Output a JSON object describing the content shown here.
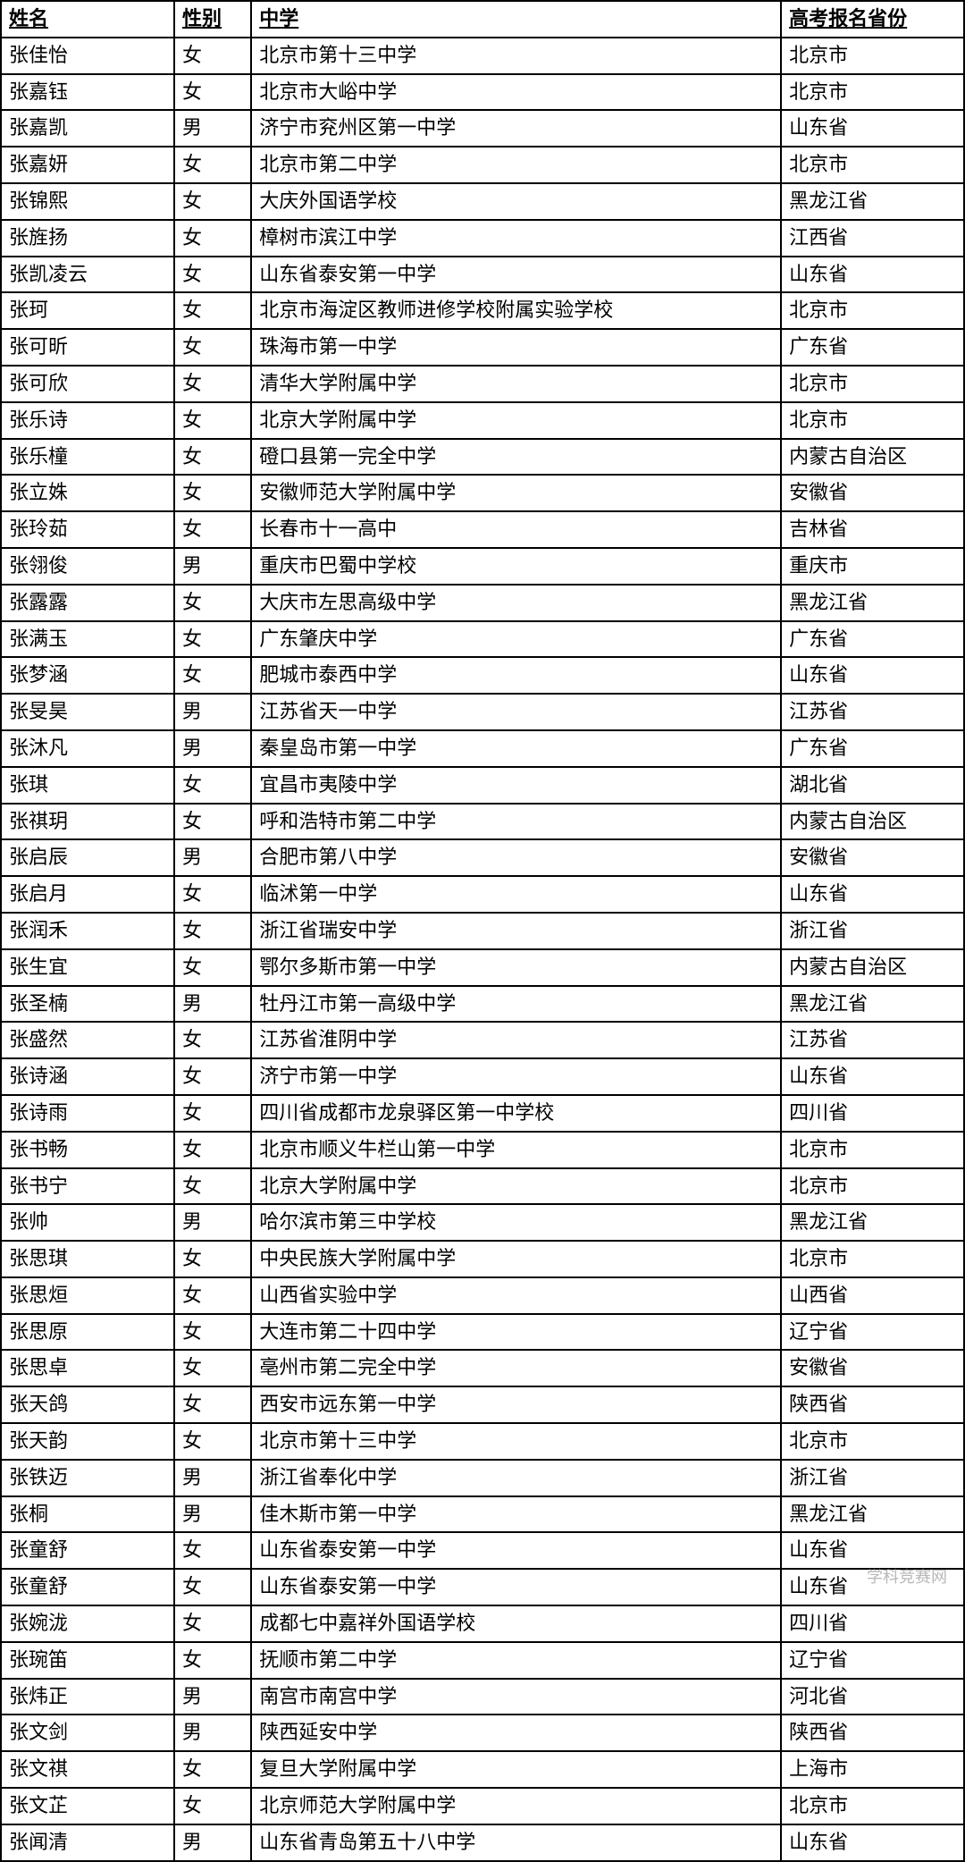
{
  "table": {
    "columns": [
      "姓名",
      "性别",
      "中学",
      "高考报名省份"
    ],
    "column_widths": [
      "18%",
      "8%",
      "55%",
      "19%"
    ],
    "header_fontsize": 22,
    "cell_fontsize": 22,
    "border_color": "#000000",
    "background_color": "#ffffff",
    "rows": [
      [
        "张佳怡",
        "女",
        "北京市第十三中学",
        "北京市"
      ],
      [
        "张嘉钰",
        "女",
        "北京市大峪中学",
        "北京市"
      ],
      [
        "张嘉凯",
        "男",
        "济宁市兖州区第一中学",
        "山东省"
      ],
      [
        "张嘉妍",
        "女",
        "北京市第二中学",
        "北京市"
      ],
      [
        "张锦熙",
        "女",
        "大庆外国语学校",
        "黑龙江省"
      ],
      [
        "张旌扬",
        "女",
        "樟树市滨江中学",
        "江西省"
      ],
      [
        "张凯凌云",
        "女",
        "山东省泰安第一中学",
        "山东省"
      ],
      [
        "张珂",
        "女",
        "北京市海淀区教师进修学校附属实验学校",
        "北京市"
      ],
      [
        "张可昕",
        "女",
        "珠海市第一中学",
        "广东省"
      ],
      [
        "张可欣",
        "女",
        "清华大学附属中学",
        "北京市"
      ],
      [
        "张乐诗",
        "女",
        "北京大学附属中学",
        "北京市"
      ],
      [
        "张乐橦",
        "女",
        "磴口县第一完全中学",
        "内蒙古自治区"
      ],
      [
        "张立姝",
        "女",
        "安徽师范大学附属中学",
        "安徽省"
      ],
      [
        "张玲茹",
        "女",
        "长春市十一高中",
        "吉林省"
      ],
      [
        "张翎俊",
        "男",
        "重庆市巴蜀中学校",
        "重庆市"
      ],
      [
        "张露露",
        "女",
        "大庆市左思高级中学",
        "黑龙江省"
      ],
      [
        "张满玉",
        "女",
        "广东肇庆中学",
        "广东省"
      ],
      [
        "张梦涵",
        "女",
        "肥城市泰西中学",
        "山东省"
      ],
      [
        "张旻昊",
        "男",
        "江苏省天一中学",
        "江苏省"
      ],
      [
        "张沐凡",
        "男",
        "秦皇岛市第一中学",
        "广东省"
      ],
      [
        "张琪",
        "女",
        "宜昌市夷陵中学",
        "湖北省"
      ],
      [
        "张祺玥",
        "女",
        "呼和浩特市第二中学",
        "内蒙古自治区"
      ],
      [
        "张启辰",
        "男",
        "合肥市第八中学",
        "安徽省"
      ],
      [
        "张启月",
        "女",
        "临沭第一中学",
        "山东省"
      ],
      [
        "张润禾",
        "女",
        "浙江省瑞安中学",
        "浙江省"
      ],
      [
        "张生宜",
        "女",
        "鄂尔多斯市第一中学",
        "内蒙古自治区"
      ],
      [
        "张圣楠",
        "男",
        "牡丹江市第一高级中学",
        "黑龙江省"
      ],
      [
        "张盛然",
        "女",
        "江苏省淮阴中学",
        "江苏省"
      ],
      [
        "张诗涵",
        "女",
        "济宁市第一中学",
        "山东省"
      ],
      [
        "张诗雨",
        "女",
        "四川省成都市龙泉驿区第一中学校",
        "四川省"
      ],
      [
        "张书畅",
        "女",
        "北京市顺义牛栏山第一中学",
        "北京市"
      ],
      [
        "张书宁",
        "女",
        "北京大学附属中学",
        "北京市"
      ],
      [
        "张帅",
        "男",
        "哈尔滨市第三中学校",
        "黑龙江省"
      ],
      [
        "张思琪",
        "女",
        "中央民族大学附属中学",
        "北京市"
      ],
      [
        "张思烜",
        "女",
        "山西省实验中学",
        "山西省"
      ],
      [
        "张思原",
        "女",
        "大连市第二十四中学",
        "辽宁省"
      ],
      [
        "张思卓",
        "女",
        "亳州市第二完全中学",
        "安徽省"
      ],
      [
        "张天鸽",
        "女",
        "西安市远东第一中学",
        "陕西省"
      ],
      [
        "张天韵",
        "女",
        "北京市第十三中学",
        "北京市"
      ],
      [
        "张铁迈",
        "男",
        "浙江省奉化中学",
        "浙江省"
      ],
      [
        "张桐",
        "男",
        "佳木斯市第一中学",
        "黑龙江省"
      ],
      [
        "张童舒",
        "女",
        "山东省泰安第一中学",
        "山东省"
      ],
      [
        "张童舒",
        "女",
        "山东省泰安第一中学",
        "山东省"
      ],
      [
        "张婉泷",
        "女",
        "成都七中嘉祥外国语学校",
        "四川省"
      ],
      [
        "张琬笛",
        "女",
        "抚顺市第二中学",
        "辽宁省"
      ],
      [
        "张炜正",
        "男",
        "南宫市南宫中学",
        "河北省"
      ],
      [
        "张文剑",
        "男",
        "陕西延安中学",
        "陕西省"
      ],
      [
        "张文祺",
        "女",
        "复旦大学附属中学",
        "上海市"
      ],
      [
        "张文芷",
        "女",
        "北京师范大学附属中学",
        "北京市"
      ],
      [
        "张闻清",
        "男",
        "山东省青岛第五十八中学",
        "山东省"
      ]
    ]
  },
  "watermark": "学科竞赛网"
}
